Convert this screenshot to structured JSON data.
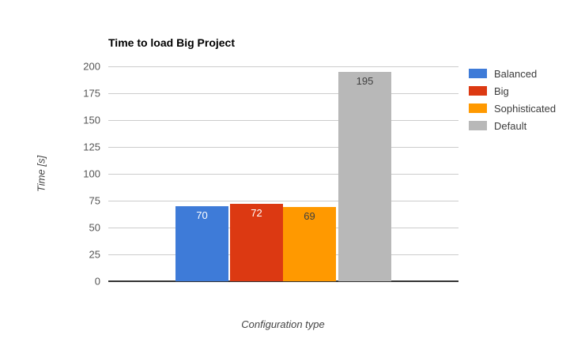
{
  "chart_data": {
    "type": "bar",
    "title": "Time to load Big Project",
    "xlabel": "Configuration type",
    "ylabel": "Time [s]",
    "categories": [
      "Balanced",
      "Big",
      "Sophisticated",
      "Default"
    ],
    "values": [
      70,
      72,
      69,
      195
    ],
    "bar_colors": [
      "#3E7BD8",
      "#DC3912",
      "#FF9900",
      "#B8B8B8"
    ],
    "value_label_colors": [
      "#FFFFFF",
      "#FFFFFF",
      "#404040",
      "#404040"
    ],
    "y_ticks": [
      0,
      25,
      50,
      75,
      100,
      125,
      150,
      175,
      200
    ],
    "ylim": [
      0,
      200
    ],
    "grid": true,
    "legend_position": "right",
    "legend": [
      {
        "label": "Balanced",
        "color": "#3E7BD8"
      },
      {
        "label": "Big",
        "color": "#DC3912"
      },
      {
        "label": "Sophisticated",
        "color": "#FF9900"
      },
      {
        "label": "Default",
        "color": "#B8B8B8"
      }
    ]
  },
  "colors": {
    "background": "#FFFFFF",
    "grid": "#CCCCCC",
    "baseline": "#333333",
    "tick_text": "#555555",
    "axis_title_text": "#444444",
    "legend_text": "#3C3C3C",
    "title_text": "#000000"
  }
}
